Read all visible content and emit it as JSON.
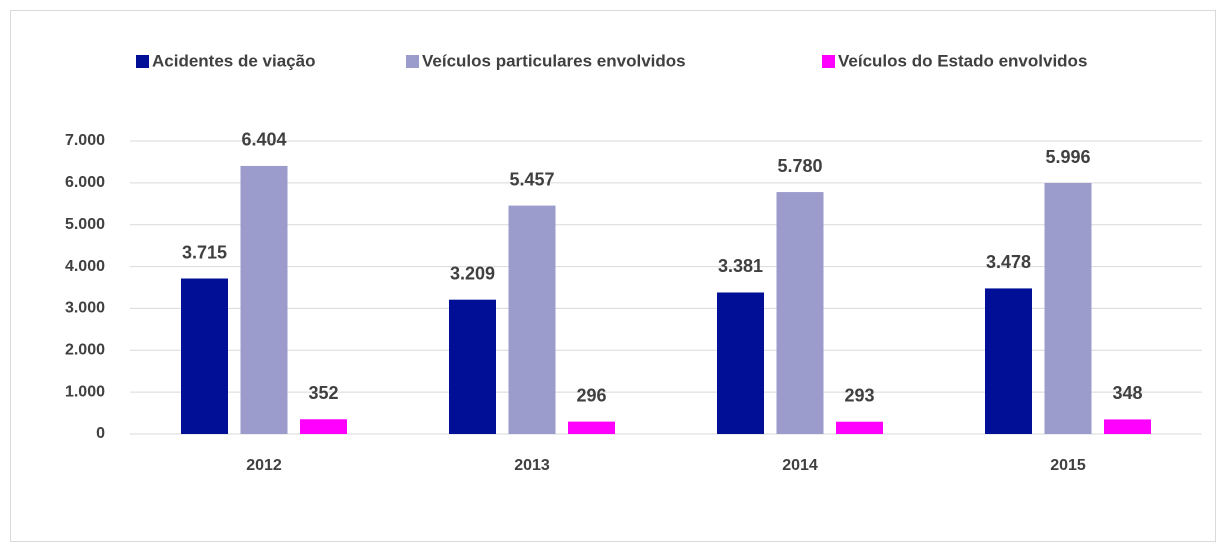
{
  "chart_data": {
    "type": "bar",
    "categories": [
      "2012",
      "2013",
      "2014",
      "2015"
    ],
    "series": [
      {
        "name": "Acidentes de viação",
        "color": "#000f96",
        "values": [
          3715,
          3209,
          3381,
          3478
        ],
        "value_labels": [
          "3.715",
          "3.209",
          "3.381",
          "3.478"
        ]
      },
      {
        "name": "Veículos particulares envolvidos",
        "color": "#9b9bcc",
        "values": [
          6404,
          5457,
          5780,
          5996
        ],
        "value_labels": [
          "6.404",
          "5.457",
          "5.780",
          "5.996"
        ]
      },
      {
        "name": "Veículos do Estado envolvidos",
        "color": "#ff00ff",
        "values": [
          352,
          296,
          293,
          348
        ],
        "value_labels": [
          "352",
          "296",
          "293",
          "348"
        ]
      }
    ],
    "ylim": [
      0,
      7000
    ],
    "yticks": [
      0,
      {
        "value": 1000,
        "label": "1.000"
      },
      {
        "value": 2000,
        "label": "2.000"
      },
      {
        "value": 3000,
        "label": "3.000"
      },
      {
        "value": 4000,
        "label": "4.000"
      },
      {
        "value": 5000,
        "label": "5.000"
      },
      {
        "value": 6000,
        "label": "6.000"
      },
      {
        "value": 7000,
        "label": "7.000"
      }
    ],
    "grid": true,
    "legend": "top"
  }
}
